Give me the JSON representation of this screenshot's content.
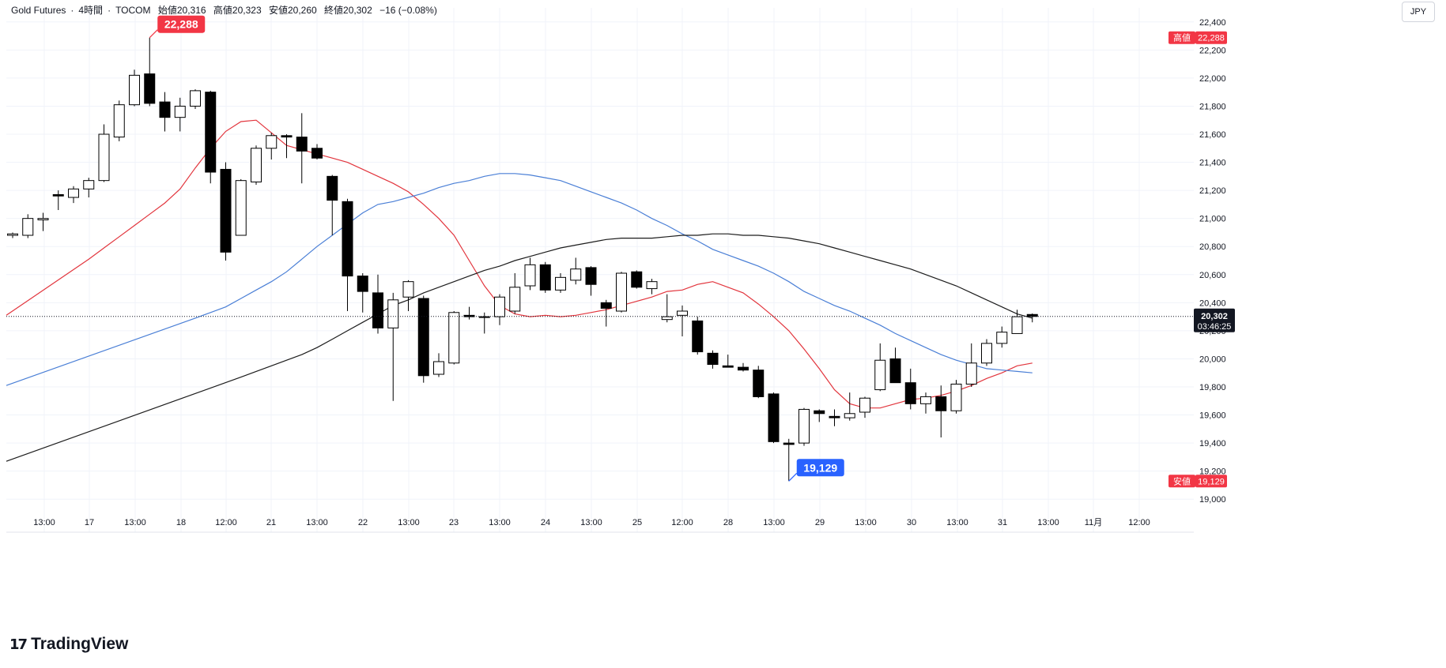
{
  "header": {
    "symbol": "Gold Futures",
    "sep1": "·",
    "interval": "4時間",
    "sep2": "·",
    "exchange": "TOCOM",
    "open": "始値20,316",
    "high": "高値20,323",
    "low": "安値20,260",
    "close": "終値20,302",
    "change": "−16 (−0.08%)"
  },
  "currency": "JPY",
  "brand": {
    "logo": "𝟭𝟳",
    "name": "TradingView"
  },
  "price_scale": {
    "ticks": [
      "22,400",
      "22,200",
      "22,000",
      "21,800",
      "21,600",
      "21,400",
      "21,200",
      "21,000",
      "20,800",
      "20,600",
      "20,400",
      "20,200",
      "20,000",
      "19,800",
      "19,600",
      "19,400",
      "19,200",
      "19,000"
    ],
    "high_tag": {
      "label": "高値",
      "value": "22,288"
    },
    "low_tag": {
      "label": "安値",
      "value": "19,129"
    },
    "last_price": "20,302",
    "countdown": "03:46:25"
  },
  "time_axis": {
    "labels": [
      "13:00",
      "17",
      "13:00",
      "18",
      "12:00",
      "21",
      "13:00",
      "22",
      "13:00",
      "23",
      "13:00",
      "24",
      "13:00",
      "25",
      "12:00",
      "28",
      "13:00",
      "29",
      "13:00",
      "30",
      "13:00",
      "31",
      "13:00",
      "11月",
      "12:00"
    ]
  },
  "annotations": {
    "high_callout": "22,288",
    "low_callout": "19,129"
  },
  "colors": {
    "up_body": "#ffffff",
    "down_body": "#000000",
    "wick": "#000000",
    "ma_fast": "#e2353d",
    "ma_mid": "#4a7fd6",
    "ma_slow": "#1c1c1c",
    "high_tag": "#f23645",
    "low_tag": "#2962ff",
    "grid": "#f0f3fa"
  },
  "chart_data": {
    "type": "candlestick",
    "title": "",
    "ylim": [
      18900,
      22500
    ],
    "candles": [
      {
        "o": 20880,
        "h": 20900,
        "l": 20860,
        "c": 20890
      },
      {
        "o": 20880,
        "h": 21030,
        "l": 20860,
        "c": 21000
      },
      {
        "o": 20990,
        "h": 21040,
        "l": 20910,
        "c": 21000
      },
      {
        "o": 21170,
        "h": 21200,
        "l": 21060,
        "c": 21160
      },
      {
        "o": 21150,
        "h": 21230,
        "l": 21110,
        "c": 21210
      },
      {
        "o": 21210,
        "h": 21290,
        "l": 21150,
        "c": 21270
      },
      {
        "o": 21270,
        "h": 21670,
        "l": 21260,
        "c": 21600
      },
      {
        "o": 21580,
        "h": 21840,
        "l": 21550,
        "c": 21810
      },
      {
        "o": 21810,
        "h": 22060,
        "l": 21800,
        "c": 22020
      },
      {
        "o": 22030,
        "h": 22288,
        "l": 21800,
        "c": 21820
      },
      {
        "o": 21830,
        "h": 21900,
        "l": 21620,
        "c": 21720
      },
      {
        "o": 21720,
        "h": 21860,
        "l": 21620,
        "c": 21800
      },
      {
        "o": 21800,
        "h": 21920,
        "l": 21780,
        "c": 21910
      },
      {
        "o": 21900,
        "h": 21910,
        "l": 21250,
        "c": 21330
      },
      {
        "o": 21350,
        "h": 21400,
        "l": 20700,
        "c": 20760
      },
      {
        "o": 20880,
        "h": 21280,
        "l": 20880,
        "c": 21270
      },
      {
        "o": 21260,
        "h": 21520,
        "l": 21240,
        "c": 21500
      },
      {
        "o": 21500,
        "h": 21610,
        "l": 21420,
        "c": 21590
      },
      {
        "o": 21590,
        "h": 21600,
        "l": 21430,
        "c": 21580
      },
      {
        "o": 21580,
        "h": 21750,
        "l": 21250,
        "c": 21480
      },
      {
        "o": 21500,
        "h": 21530,
        "l": 21420,
        "c": 21430
      },
      {
        "o": 21300,
        "h": 21310,
        "l": 20880,
        "c": 21130
      },
      {
        "o": 21120,
        "h": 21140,
        "l": 20340,
        "c": 20590
      },
      {
        "o": 20590,
        "h": 20610,
        "l": 20330,
        "c": 20480
      },
      {
        "o": 20470,
        "h": 20600,
        "l": 20180,
        "c": 20220
      },
      {
        "o": 20220,
        "h": 20470,
        "l": 19700,
        "c": 20420
      },
      {
        "o": 20440,
        "h": 20560,
        "l": 20340,
        "c": 20550
      },
      {
        "o": 20430,
        "h": 20450,
        "l": 19830,
        "c": 19880
      },
      {
        "o": 19890,
        "h": 20040,
        "l": 19870,
        "c": 19980
      },
      {
        "o": 19970,
        "h": 20340,
        "l": 19960,
        "c": 20330
      },
      {
        "o": 20310,
        "h": 20370,
        "l": 20280,
        "c": 20300
      },
      {
        "o": 20300,
        "h": 20330,
        "l": 20180,
        "c": 20300
      },
      {
        "o": 20300,
        "h": 20460,
        "l": 20240,
        "c": 20440
      },
      {
        "o": 20340,
        "h": 20610,
        "l": 20320,
        "c": 20510
      },
      {
        "o": 20520,
        "h": 20720,
        "l": 20490,
        "c": 20670
      },
      {
        "o": 20670,
        "h": 20690,
        "l": 20470,
        "c": 20490
      },
      {
        "o": 20490,
        "h": 20610,
        "l": 20470,
        "c": 20580
      },
      {
        "o": 20560,
        "h": 20720,
        "l": 20530,
        "c": 20640
      },
      {
        "o": 20650,
        "h": 20660,
        "l": 20450,
        "c": 20530
      },
      {
        "o": 20400,
        "h": 20420,
        "l": 20230,
        "c": 20360
      },
      {
        "o": 20340,
        "h": 20620,
        "l": 20330,
        "c": 20610
      },
      {
        "o": 20620,
        "h": 20630,
        "l": 20500,
        "c": 20510
      },
      {
        "o": 20500,
        "h": 20570,
        "l": 20460,
        "c": 20550
      },
      {
        "o": 20280,
        "h": 20460,
        "l": 20260,
        "c": 20300
      },
      {
        "o": 20310,
        "h": 20380,
        "l": 20160,
        "c": 20340
      },
      {
        "o": 20270,
        "h": 20300,
        "l": 20030,
        "c": 20050
      },
      {
        "o": 20040,
        "h": 20060,
        "l": 19930,
        "c": 19960
      },
      {
        "o": 19950,
        "h": 20030,
        "l": 19940,
        "c": 19940
      },
      {
        "o": 19940,
        "h": 19970,
        "l": 19910,
        "c": 19920
      },
      {
        "o": 19920,
        "h": 19950,
        "l": 19720,
        "c": 19730
      },
      {
        "o": 19750,
        "h": 19760,
        "l": 19400,
        "c": 19410
      },
      {
        "o": 19400,
        "h": 19430,
        "l": 19129,
        "c": 19390
      },
      {
        "o": 19400,
        "h": 19650,
        "l": 19380,
        "c": 19640
      },
      {
        "o": 19630,
        "h": 19640,
        "l": 19550,
        "c": 19610
      },
      {
        "o": 19590,
        "h": 19640,
        "l": 19520,
        "c": 19580
      },
      {
        "o": 19580,
        "h": 19760,
        "l": 19560,
        "c": 19610
      },
      {
        "o": 19620,
        "h": 19730,
        "l": 19580,
        "c": 19720
      },
      {
        "o": 19780,
        "h": 20110,
        "l": 19770,
        "c": 19990
      },
      {
        "o": 20000,
        "h": 20080,
        "l": 19830,
        "c": 19830
      },
      {
        "o": 19830,
        "h": 19930,
        "l": 19640,
        "c": 19680
      },
      {
        "o": 19680,
        "h": 19760,
        "l": 19610,
        "c": 19730
      },
      {
        "o": 19730,
        "h": 19810,
        "l": 19440,
        "c": 19630
      },
      {
        "o": 19630,
        "h": 19850,
        "l": 19610,
        "c": 19820
      },
      {
        "o": 19820,
        "h": 20110,
        "l": 19800,
        "c": 19970
      },
      {
        "o": 19970,
        "h": 20140,
        "l": 19950,
        "c": 20110
      },
      {
        "o": 20110,
        "h": 20230,
        "l": 20080,
        "c": 20190
      },
      {
        "o": 20180,
        "h": 20350,
        "l": 20180,
        "c": 20300
      },
      {
        "o": 20316,
        "h": 20323,
        "l": 20260,
        "c": 20302
      }
    ],
    "series": [
      {
        "name": "",
        "values": [
          20710,
          20790,
          20870,
          20950,
          21030,
          21110,
          21210,
          21360,
          21500,
          21620,
          21690,
          21700,
          21610,
          21520,
          21490,
          21460,
          21430,
          21400,
          21350,
          21300,
          21250,
          21190,
          21100,
          21000,
          20880,
          20700,
          20520,
          20380,
          20320,
          20300,
          20310,
          20300,
          20310,
          20330,
          20350,
          20380,
          20410,
          20440,
          20480,
          20490,
          20530,
          20550,
          20510,
          20470,
          20390,
          20300,
          20200,
          20070,
          19930,
          19780,
          19680,
          19650,
          19650,
          19680,
          19710,
          19720,
          19740,
          19770,
          19810,
          19860,
          19900,
          19950,
          19970
        ]
      },
      {
        "name": "",
        "values": [
          20290,
          20330,
          20370,
          20430,
          20490,
          20550,
          20620,
          20710,
          20800,
          20880,
          20960,
          21040,
          21100,
          21120,
          21150,
          21180,
          21220,
          21250,
          21270,
          21300,
          21320,
          21320,
          21310,
          21290,
          21270,
          21230,
          21190,
          21150,
          21110,
          21060,
          21000,
          20950,
          20890,
          20840,
          20780,
          20740,
          20700,
          20660,
          20610,
          20550,
          20480,
          20430,
          20380,
          20340,
          20290,
          20240,
          20180,
          20130,
          20080,
          20030,
          19990,
          19960,
          19930,
          19920,
          19910,
          19900
        ]
      },
      {
        "name": "",
        "values": [
          19870,
          19910,
          19950,
          19990,
          20030,
          20080,
          20140,
          20200,
          20260,
          20320,
          20380,
          20420,
          20470,
          20510,
          20550,
          20590,
          20630,
          20660,
          20700,
          20730,
          20760,
          20790,
          20810,
          20830,
          20850,
          20860,
          20860,
          20860,
          20870,
          20880,
          20880,
          20890,
          20890,
          20880,
          20880,
          20870,
          20860,
          20840,
          20820,
          20790,
          20760,
          20730,
          20700,
          20670,
          20640,
          20600,
          20560,
          20520,
          20470,
          20420,
          20370,
          20320,
          20290
        ]
      }
    ]
  }
}
